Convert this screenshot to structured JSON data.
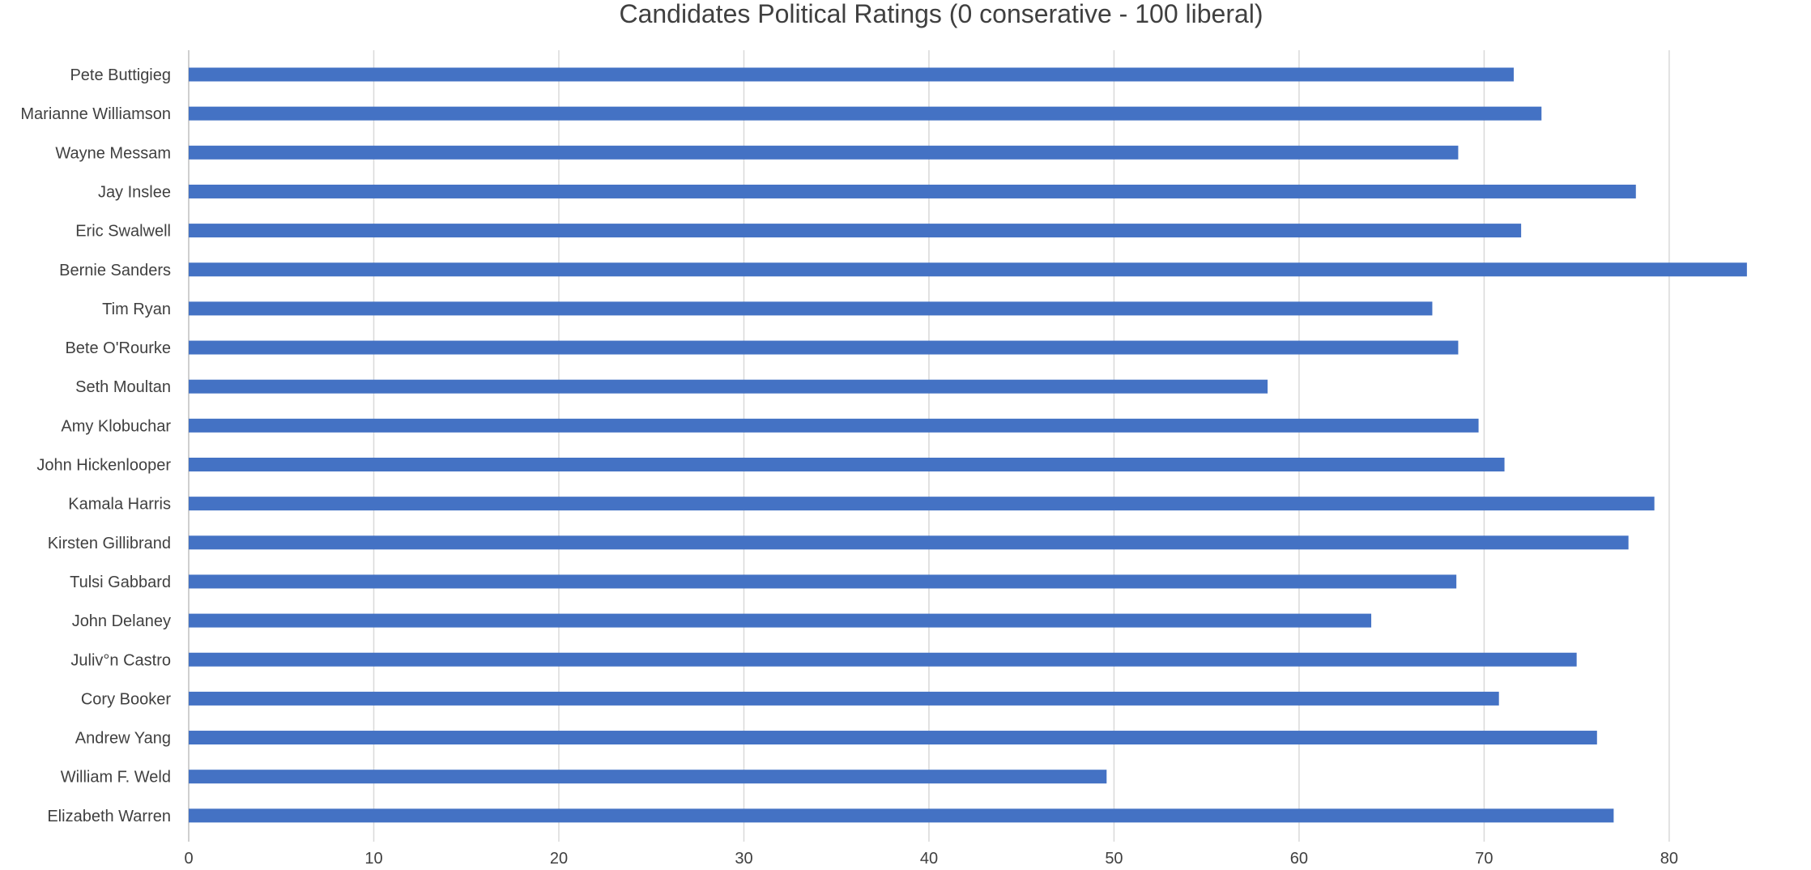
{
  "chart_data": {
    "type": "bar",
    "orientation": "horizontal",
    "title": "Candidates Political Ratings (0 conserative - 100 liberal)",
    "xlabel": "",
    "ylabel": "",
    "categories": [
      "Pete Buttigieg",
      "Marianne Williamson",
      "Wayne Messam",
      "Jay Inslee",
      "Eric Swalwell",
      "Bernie Sanders",
      "Tim Ryan",
      "Bete O'Rourke",
      "Seth Moultan",
      "Amy Klobuchar",
      "John Hickenlooper",
      "Kamala Harris",
      "Kirsten Gillibrand",
      "Tulsi Gabbard",
      "John Delaney",
      "Juliv°n Castro",
      "Cory Booker",
      "Andrew Yang",
      "William F. Weld",
      "Elizabeth Warren"
    ],
    "values": [
      71.6,
      73.1,
      68.6,
      78.2,
      72.0,
      84.2,
      67.2,
      68.6,
      58.3,
      69.7,
      71.1,
      79.2,
      77.8,
      68.5,
      63.9,
      75.0,
      70.8,
      76.1,
      49.6,
      77.0
    ],
    "xlim": [
      0,
      86
    ],
    "xticks": [
      "0",
      "10",
      "20",
      "30",
      "40",
      "50",
      "60",
      "70",
      "80"
    ],
    "xtick_values": [
      0,
      10,
      20,
      30,
      40,
      50,
      60,
      70,
      80
    ],
    "grid": true,
    "legend": "none",
    "bar_color": "#4472C4"
  }
}
